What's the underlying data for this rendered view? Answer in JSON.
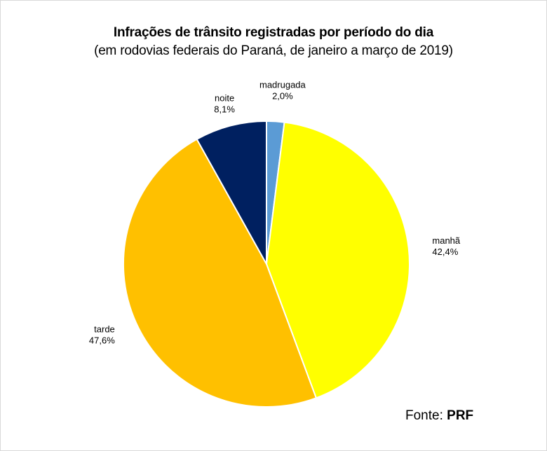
{
  "chart_data": {
    "type": "pie",
    "title": "Infrações de trânsito registradas por período do dia",
    "subtitle": "(em rodovias federais do Paraná, de janeiro a março de 2019)",
    "slices": [
      {
        "label": "madrugada",
        "value": 2.0,
        "value_label": "2,0%",
        "color": "#5b9bd5"
      },
      {
        "label": "manhã",
        "value": 42.4,
        "value_label": "42,4%",
        "color": "#ffff00"
      },
      {
        "label": "tarde",
        "value": 47.6,
        "value_label": "47,6%",
        "color": "#ffc000"
      },
      {
        "label": "noite",
        "value": 8.1,
        "value_label": "8,1%",
        "color": "#002060"
      }
    ],
    "start_angle_deg": 0,
    "direction": "clockwise"
  },
  "source": {
    "prefix": "Fonte: ",
    "name": "PRF"
  }
}
